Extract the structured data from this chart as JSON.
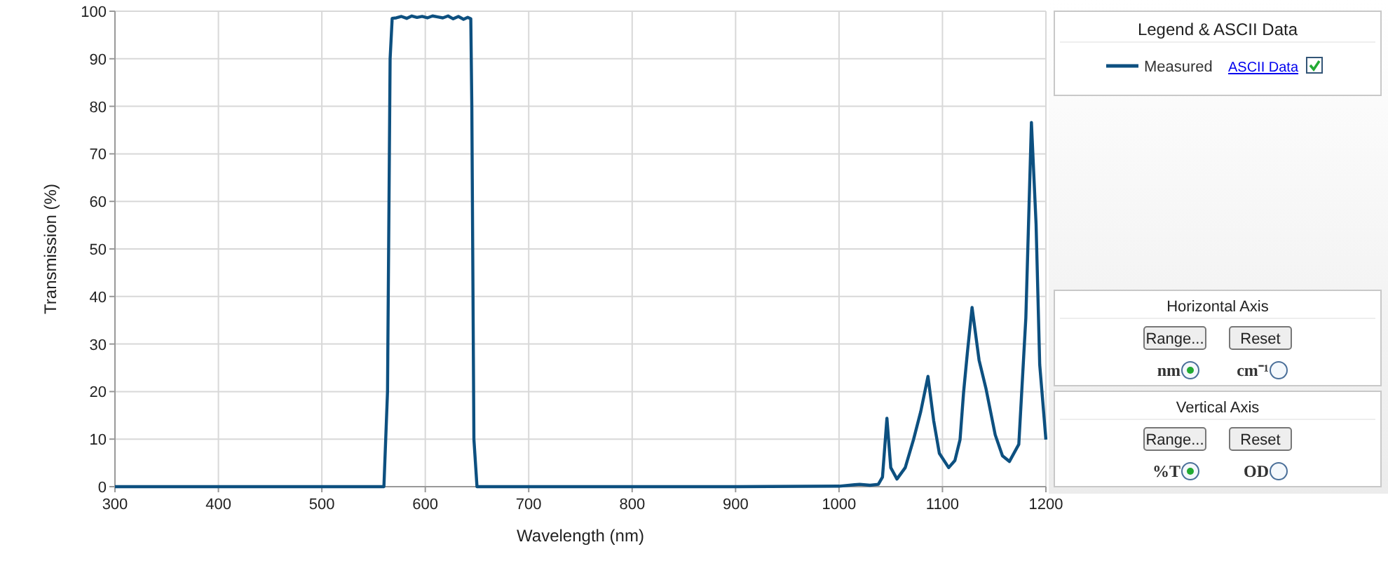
{
  "chart_data": {
    "type": "line",
    "xlabel": "Wavelength (nm)",
    "ylabel": "Transmission (%)",
    "legend_title": "Legend & ASCII Data",
    "xlim": [
      300,
      1200
    ],
    "ylim": [
      0,
      100
    ],
    "xticks": [
      300,
      400,
      500,
      600,
      700,
      800,
      900,
      1000,
      1100,
      1200
    ],
    "yticks": [
      0,
      10,
      20,
      30,
      40,
      50,
      60,
      70,
      80,
      90,
      100
    ],
    "grid": true,
    "legend": "top right",
    "marker": "none",
    "line_style": "solid",
    "series": [
      {
        "name": "Measured",
        "color": "#0d5080",
        "x": [
          300,
          560,
          563.5,
          566,
          568,
          572,
          577,
          582,
          587,
          592,
          597,
          602,
          607,
          612,
          617,
          622,
          627,
          632,
          637,
          641,
          644,
          645,
          647,
          650,
          700,
          800,
          900,
          1000,
          1015,
          1020,
          1030,
          1038,
          1042,
          1046.3,
          1050,
          1056,
          1064,
          1072,
          1079,
          1086,
          1091.5,
          1097,
          1106,
          1112,
          1117,
          1120.4,
          1124,
          1128.6,
          1135.4,
          1142,
          1151,
          1158,
          1164.7,
          1173.8,
          1180.6,
          1186,
          1190.5,
          1194,
          1200
        ],
        "values": [
          0,
          0,
          20,
          90,
          98.5,
          98.6,
          98.9,
          98.5,
          99,
          98.7,
          98.9,
          98.6,
          99,
          98.8,
          98.6,
          99,
          98.4,
          98.9,
          98.3,
          98.7,
          98.4,
          80,
          10,
          0,
          0,
          0,
          0,
          0.1,
          0.4,
          0.5,
          0.3,
          0.5,
          2,
          14.4,
          4,
          1.6,
          4,
          9.9,
          15.8,
          23.2,
          13.9,
          7,
          4,
          5.5,
          9.9,
          19.8,
          28,
          37.7,
          26.6,
          20.7,
          10.9,
          6.5,
          5.3,
          8.9,
          35.5,
          76.6,
          55.2,
          25.7,
          9.9
        ]
      }
    ],
    "annotations": [
      "ASCII Data",
      "Horizontal Axis",
      "Range...",
      "Reset",
      "nm",
      "cm⁻¹",
      "Vertical Axis",
      "Range...",
      "Reset",
      "%T",
      "OD"
    ]
  }
}
